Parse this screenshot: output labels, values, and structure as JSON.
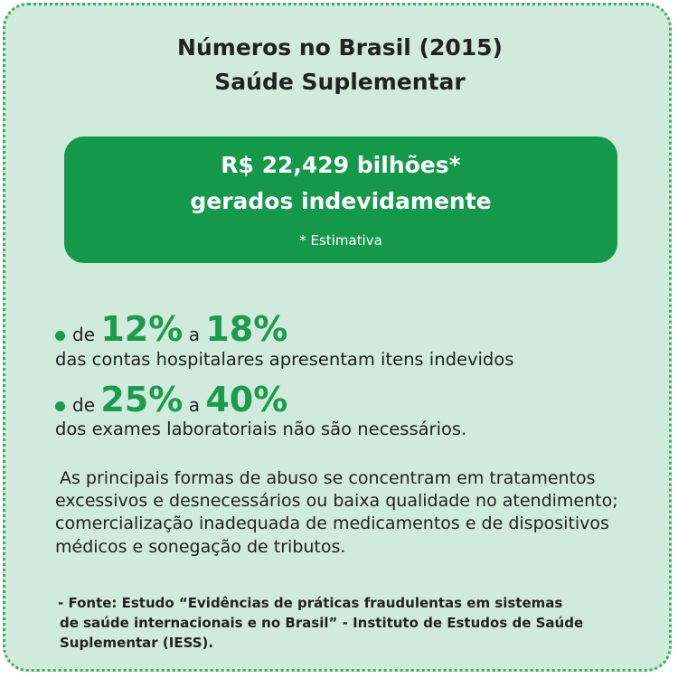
{
  "header": {
    "title": [
      "Números no Brasil (2015)",
      "Saúde Suplementar"
    ]
  },
  "highlight": {
    "lines": [
      "R$ 22,429 bilhões*",
      "gerados indevidamente"
    ],
    "note": "* Estimativa"
  },
  "stats": [
    {
      "from_word": "de",
      "from": "12%",
      "to_word": "a",
      "to": "18%",
      "text": "das contas hospitalares apresentam itens indevidos"
    },
    {
      "from_word": "de",
      "from": "25%",
      "to_word": "a",
      "to": "40%",
      "text": "dos exames laboratoriais não são necessários."
    }
  ],
  "paragraph": [
    "As principais formas de abuso se concentram em tratamentos",
    "excessivos e desnecessários ou baixa qualidade no atendimento;",
    "comercialização inadequada de medicamentos e de dispositivos",
    "médicos e sonegação de tributos."
  ],
  "source": [
    "- Fonte:  Estudo “Evidências de práticas fraudulentas em sistemas",
    "de saúde internacionais e no Brasil” - Instituto de Estudos de Saúde",
    "Suplementar (IESS)."
  ]
}
